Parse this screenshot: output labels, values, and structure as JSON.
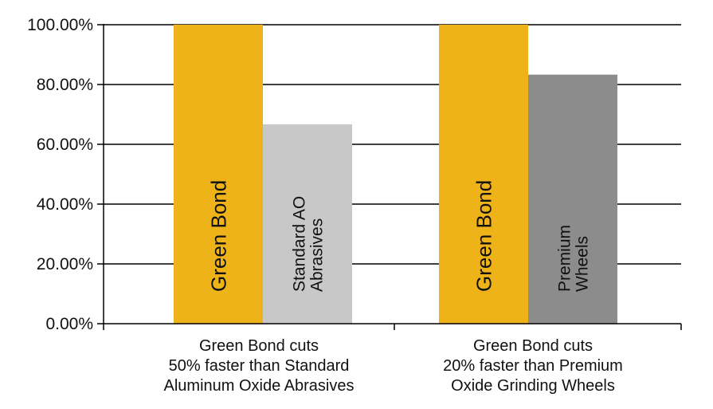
{
  "chart_data": {
    "type": "bar",
    "ylim": [
      0,
      100
    ],
    "yticks": [
      0,
      20,
      40,
      60,
      80,
      100
    ],
    "ytick_labels": [
      "0.00%",
      "20.00%",
      "40.00%",
      "60.00%",
      "80.00%",
      "100.00%"
    ],
    "grid": true,
    "groups": [
      {
        "category_lines": [
          "Green Bond cuts",
          "50% faster than Standard",
          "Aluminum Oxide Abrasives"
        ],
        "bars": [
          {
            "label_lines": [
              "Green Bond"
            ],
            "value": 100,
            "color": "#EFB31A"
          },
          {
            "label_lines": [
              "Standard AO",
              "Abrasives"
            ],
            "value": 66.7,
            "color": "#C8C8C8"
          }
        ]
      },
      {
        "category_lines": [
          "Green Bond cuts",
          "20% faster than Premium",
          "Oxide Grinding Wheels"
        ],
        "bars": [
          {
            "label_lines": [
              "Green Bond"
            ],
            "value": 100,
            "color": "#EFB31A"
          },
          {
            "label_lines": [
              "Premium",
              "Wheels"
            ],
            "value": 83.3,
            "color": "#8C8C8C"
          }
        ]
      }
    ]
  }
}
